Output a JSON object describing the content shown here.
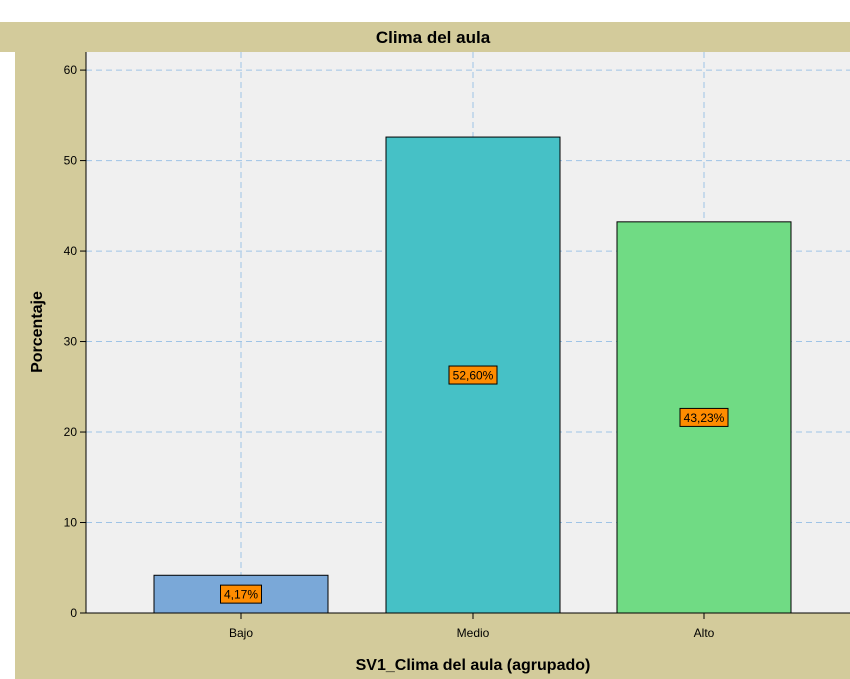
{
  "chart_data": {
    "type": "bar",
    "title": "Clima del aula",
    "xlabel": "SV1_Clima del aula (agrupado)",
    "ylabel": "Porcentaje",
    "categories": [
      "Bajo",
      "Medio",
      "Alto"
    ],
    "values": [
      4.17,
      52.6,
      43.23
    ],
    "data_labels": [
      "4,17%",
      "52,60%",
      "43,23%"
    ],
    "ylim": [
      0,
      62
    ],
    "yticks": [
      0,
      10,
      20,
      30,
      40,
      50,
      60
    ],
    "grid": true,
    "colors": {
      "frame": "#d3cb9b",
      "plot_background": "#f0f0f0",
      "gridline": "#9ec3e6",
      "label_box": "#ff8c00",
      "bars": [
        "#7aa8d8",
        "#46c1c6",
        "#70db84"
      ]
    }
  }
}
